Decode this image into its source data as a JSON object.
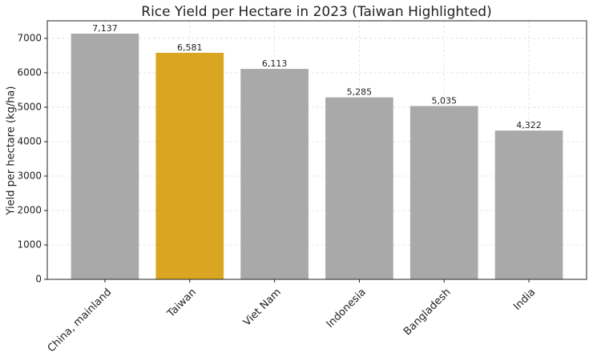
{
  "chart_data": {
    "type": "bar",
    "title": "Rice Yield per Hectare in 2023 (Taiwan Highlighted)",
    "y_label": "Yield per hectare (kg/ha)",
    "categories": [
      "China, mainland",
      "Taiwan",
      "Viet Nam",
      "Indonesia",
      "Bangladesh",
      "India"
    ],
    "values": [
      7137,
      6581,
      6113,
      5285,
      5035,
      4322
    ],
    "value_labels": [
      "7,137",
      "6,581",
      "6,113",
      "5,285",
      "5,035",
      "4,322"
    ],
    "colors": [
      "#a9a9a9",
      "#daa520",
      "#a9a9a9",
      "#a9a9a9",
      "#a9a9a9",
      "#a9a9a9"
    ],
    "ylim": [
      0,
      7510
    ],
    "yticks": [
      0,
      1000,
      2000,
      3000,
      4000,
      5000,
      6000,
      7000
    ],
    "grid": true
  }
}
